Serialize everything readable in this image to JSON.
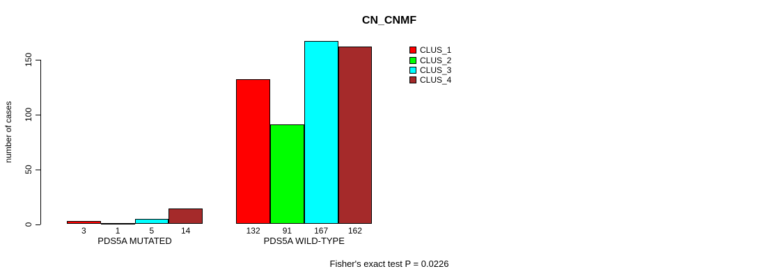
{
  "chart_data": {
    "type": "bar",
    "title": "CN_CNMF",
    "ylabel": "number of cases",
    "xlabel": "",
    "categories": [
      "PDS5A MUTATED",
      "PDS5A WILD-TYPE"
    ],
    "series": [
      {
        "name": "CLUS_1",
        "color": "#ff0000",
        "values": [
          3,
          132
        ]
      },
      {
        "name": "CLUS_2",
        "color": "#00ff00",
        "values": [
          1,
          91
        ]
      },
      {
        "name": "CLUS_3",
        "color": "#00ffff",
        "values": [
          5,
          167
        ]
      },
      {
        "name": "CLUS_4",
        "color": "#a52a2a",
        "values": [
          14,
          162
        ]
      }
    ],
    "bar_value_labels": [
      [
        3,
        1,
        5,
        14
      ],
      [
        132,
        91,
        167,
        162
      ]
    ],
    "yticks": [
      0,
      50,
      100,
      150
    ],
    "ylim": [
      0,
      170
    ],
    "grid": false,
    "legend_position": "top, right of plot center",
    "legend_entries": [
      "CLUS_1",
      "CLUS_2",
      "CLUS_3",
      "CLUS_4"
    ],
    "footer": "Fisher's exact test P = 0.0226"
  }
}
